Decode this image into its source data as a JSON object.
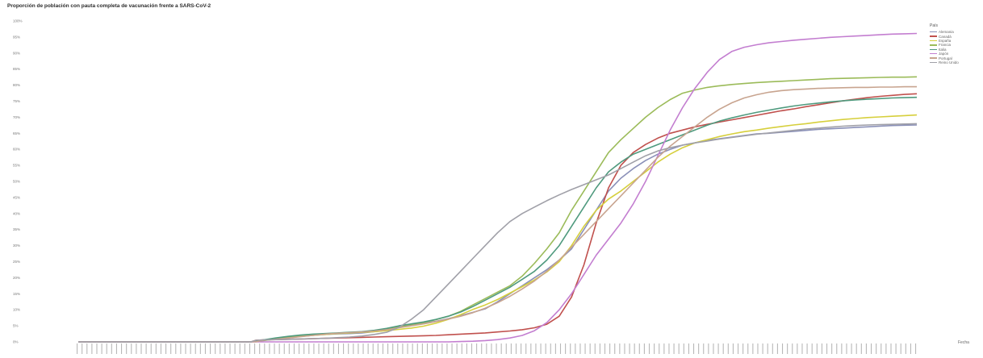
{
  "chart_data": {
    "type": "line",
    "title": "Proporción de población con pauta completa de vacunación frente a SARS-CoV-2",
    "xlabel": "Fecha",
    "ylabel": "",
    "legend_title": "País",
    "legend_position": "top-right",
    "ylim": [
      0,
      100
    ],
    "yticks": [
      "0%",
      "5%",
      "10%",
      "15%",
      "20%",
      "25%",
      "30%",
      "35%",
      "40%",
      "45%",
      "50%",
      "55%",
      "60%",
      "65%",
      "70%",
      "75%",
      "80%",
      "85%",
      "90%",
      "95%",
      "100%"
    ],
    "x_range": [
      "2021-01",
      "2021-12"
    ],
    "grid": false,
    "series": [
      {
        "name": "Alemania",
        "color": "#8a90b8",
        "x": [
          0,
          5,
          10,
          15,
          20,
          25,
          30,
          35,
          40,
          45,
          50,
          55,
          60,
          65,
          70,
          72,
          75,
          80,
          85,
          90,
          95,
          100,
          105,
          110,
          115,
          120,
          125,
          130,
          135,
          140,
          145,
          150,
          155,
          160,
          165,
          170,
          175,
          180,
          185,
          190,
          195,
          200,
          205,
          210,
          215,
          220,
          225,
          230,
          235,
          240,
          245,
          250,
          255,
          260,
          265,
          270,
          275,
          280,
          285,
          290,
          295,
          300,
          305,
          310,
          315,
          320,
          325,
          330,
          335,
          340
        ],
        "y": [
          0,
          0,
          0,
          0,
          0,
          0,
          0,
          0,
          0,
          0,
          0,
          0,
          0,
          0,
          0,
          0.3,
          0.5,
          1.0,
          1.2,
          1.7,
          2.0,
          2.3,
          2.5,
          2.6,
          2.8,
          3.2,
          3.6,
          4.6,
          5.2,
          5.8,
          6.4,
          7.2,
          8.2,
          9.2,
          10.3,
          12.5,
          15.0,
          17.5,
          20.0,
          22.5,
          25.5,
          29,
          35,
          41,
          47,
          51,
          54,
          56.5,
          58.5,
          60,
          61.3,
          62,
          62.8,
          63.3,
          63.8,
          64.3,
          64.8,
          65,
          65.3,
          65.6,
          65.9,
          66.2,
          66.4,
          66.6,
          66.8,
          67,
          67.2,
          67.4,
          67.5,
          67.6
        ]
      },
      {
        "name": "Canadá",
        "color": "#c0504d",
        "x": [
          0,
          5,
          10,
          15,
          20,
          25,
          30,
          35,
          40,
          45,
          50,
          55,
          60,
          65,
          70,
          72,
          75,
          80,
          85,
          90,
          95,
          100,
          105,
          110,
          115,
          120,
          125,
          130,
          135,
          140,
          145,
          150,
          155,
          160,
          165,
          170,
          175,
          180,
          185,
          190,
          195,
          200,
          205,
          210,
          215,
          220,
          225,
          230,
          235,
          240,
          245,
          250,
          255,
          260,
          265,
          270,
          275,
          280,
          285,
          290,
          295,
          300,
          305,
          310,
          315,
          320,
          325,
          330,
          335,
          340
        ],
        "y": [
          0,
          0,
          0,
          0,
          0,
          0,
          0,
          0,
          0,
          0,
          0,
          0,
          0,
          0,
          0,
          0.5,
          0.6,
          0.7,
          0.8,
          0.9,
          1.0,
          1.1,
          1.2,
          1.3,
          1.4,
          1.5,
          1.6,
          1.7,
          1.8,
          1.9,
          2.0,
          2.2,
          2.4,
          2.6,
          2.8,
          3.1,
          3.4,
          3.8,
          4.4,
          5.5,
          8,
          14,
          24,
          37,
          48,
          55,
          59,
          61.5,
          63.5,
          65,
          66,
          67,
          67.8,
          68.5,
          69.2,
          69.9,
          70.6,
          71.3,
          72,
          72.6,
          73.3,
          73.9,
          74.5,
          75.1,
          75.6,
          76.1,
          76.5,
          76.8,
          77.1,
          77.3
        ]
      },
      {
        "name": "España",
        "color": "#d6cf3c",
        "x": [
          0,
          5,
          10,
          15,
          20,
          25,
          30,
          35,
          40,
          45,
          50,
          55,
          60,
          65,
          70,
          72,
          75,
          80,
          85,
          90,
          95,
          100,
          105,
          110,
          115,
          120,
          125,
          130,
          135,
          140,
          145,
          150,
          155,
          160,
          165,
          170,
          175,
          180,
          185,
          190,
          195,
          200,
          205,
          210,
          215,
          220,
          225,
          230,
          235,
          240,
          245,
          250,
          255,
          260,
          265,
          270,
          275,
          280,
          285,
          290,
          295,
          300,
          305,
          310,
          315,
          320,
          325,
          330,
          335,
          340
        ],
        "y": [
          0,
          0,
          0,
          0,
          0,
          0,
          0,
          0,
          0,
          0,
          0,
          0,
          0,
          0,
          0,
          0.2,
          0.5,
          0.9,
          1.3,
          1.7,
          2.0,
          2.3,
          2.6,
          2.8,
          3.0,
          3.2,
          3.5,
          3.9,
          4.3,
          4.9,
          5.8,
          7.0,
          8.5,
          10.1,
          11.5,
          13.2,
          15.2,
          17.2,
          19.3,
          21.8,
          25,
          30,
          36,
          41,
          44.5,
          47,
          50,
          53,
          56,
          58.5,
          60.5,
          62,
          63,
          64,
          64.8,
          65.5,
          66,
          66.6,
          67.1,
          67.6,
          68,
          68.5,
          68.9,
          69.3,
          69.6,
          69.9,
          70.1,
          70.3,
          70.5,
          70.7
        ]
      },
      {
        "name": "Francia",
        "color": "#9bbb59",
        "x": [
          0,
          5,
          10,
          15,
          20,
          25,
          30,
          35,
          40,
          45,
          50,
          55,
          60,
          65,
          70,
          72,
          75,
          80,
          85,
          90,
          95,
          100,
          105,
          110,
          115,
          120,
          125,
          130,
          135,
          140,
          145,
          150,
          155,
          160,
          165,
          170,
          175,
          180,
          185,
          190,
          195,
          200,
          205,
          210,
          215,
          220,
          225,
          230,
          235,
          240,
          245,
          250,
          255,
          260,
          265,
          270,
          275,
          280,
          285,
          290,
          295,
          300,
          305,
          310,
          315,
          320,
          325,
          330,
          335,
          340
        ],
        "y": [
          0,
          0,
          0,
          0,
          0,
          0,
          0,
          0,
          0,
          0,
          0,
          0,
          0,
          0,
          0,
          0.2,
          0.4,
          0.9,
          1.5,
          1.9,
          2.2,
          2.5,
          2.7,
          2.9,
          3.1,
          3.5,
          4.0,
          4.8,
          5.4,
          6.0,
          6.9,
          8.0,
          9.5,
          11.5,
          13.5,
          15.5,
          17.5,
          20.5,
          24.5,
          29,
          34,
          41,
          47,
          53,
          59,
          63,
          66.5,
          70,
          73,
          75.5,
          77.5,
          78.5,
          79.3,
          79.8,
          80.2,
          80.5,
          80.8,
          81,
          81.2,
          81.4,
          81.6,
          81.8,
          82,
          82.1,
          82.2,
          82.3,
          82.4,
          82.5,
          82.5,
          82.6
        ]
      },
      {
        "name": "Italia",
        "color": "#4f9a7e",
        "x": [
          0,
          5,
          10,
          15,
          20,
          25,
          30,
          35,
          40,
          45,
          50,
          55,
          60,
          65,
          70,
          72,
          75,
          80,
          85,
          90,
          95,
          100,
          105,
          110,
          115,
          120,
          125,
          130,
          135,
          140,
          145,
          150,
          155,
          160,
          165,
          170,
          175,
          180,
          185,
          190,
          195,
          200,
          205,
          210,
          215,
          220,
          225,
          230,
          235,
          240,
          245,
          250,
          255,
          260,
          265,
          270,
          275,
          280,
          285,
          290,
          295,
          300,
          305,
          310,
          315,
          320,
          325,
          330,
          335,
          340
        ],
        "y": [
          0,
          0,
          0,
          0,
          0,
          0,
          0,
          0,
          0,
          0,
          0,
          0,
          0,
          0,
          0,
          0.3,
          0.6,
          1.2,
          1.7,
          2.1,
          2.4,
          2.6,
          2.8,
          3.0,
          3.2,
          3.6,
          4.2,
          5.0,
          5.6,
          6.2,
          7.0,
          8.0,
          9.3,
          11.0,
          13.0,
          15.0,
          17.0,
          19.5,
          22,
          25.5,
          30,
          36,
          42,
          48,
          53,
          56,
          58.5,
          60,
          61.5,
          63,
          64.5,
          66,
          67.5,
          68.8,
          69.8,
          70.7,
          71.5,
          72.2,
          72.9,
          73.5,
          74,
          74.4,
          74.8,
          75.1,
          75.4,
          75.6,
          75.8,
          76,
          76.1,
          76.2
        ]
      },
      {
        "name": "Japón",
        "color": "#c37ed0",
        "x": [
          0,
          5,
          10,
          15,
          20,
          25,
          30,
          35,
          40,
          45,
          50,
          55,
          60,
          65,
          70,
          72,
          75,
          80,
          85,
          90,
          95,
          100,
          105,
          110,
          115,
          120,
          125,
          130,
          135,
          140,
          145,
          150,
          155,
          160,
          165,
          170,
          175,
          180,
          185,
          190,
          195,
          200,
          205,
          210,
          215,
          220,
          225,
          230,
          235,
          240,
          245,
          250,
          255,
          260,
          265,
          270,
          275,
          280,
          285,
          290,
          295,
          300,
          305,
          310,
          315,
          320,
          325,
          330,
          335,
          340
        ],
        "y": [
          0,
          0,
          0,
          0,
          0,
          0,
          0,
          0,
          0,
          0,
          0,
          0,
          0,
          0,
          0,
          0,
          0,
          0,
          0,
          0,
          0,
          0,
          0,
          0,
          0,
          0,
          0,
          0,
          0,
          0,
          0,
          0,
          0.1,
          0.2,
          0.4,
          0.7,
          1.2,
          2.0,
          3.5,
          6,
          10,
          15,
          21,
          27,
          32,
          37,
          43,
          50,
          58,
          66,
          73,
          79,
          84,
          88,
          90.5,
          91.8,
          92.6,
          93.2,
          93.6,
          94,
          94.3,
          94.6,
          94.9,
          95.1,
          95.3,
          95.5,
          95.7,
          95.9,
          96,
          96.1
        ]
      },
      {
        "name": "Portugal",
        "color": "#c8a48f",
        "x": [
          0,
          5,
          10,
          15,
          20,
          25,
          30,
          35,
          40,
          45,
          50,
          55,
          60,
          65,
          70,
          72,
          75,
          80,
          85,
          90,
          95,
          100,
          105,
          110,
          115,
          120,
          125,
          130,
          135,
          140,
          145,
          150,
          155,
          160,
          165,
          170,
          175,
          180,
          185,
          190,
          195,
          200,
          205,
          210,
          215,
          220,
          225,
          230,
          235,
          240,
          245,
          250,
          255,
          260,
          265,
          270,
          275,
          280,
          285,
          290,
          295,
          300,
          305,
          310,
          315,
          320,
          325,
          330,
          335,
          340
        ],
        "y": [
          0,
          0,
          0,
          0,
          0,
          0,
          0,
          0,
          0,
          0,
          0,
          0,
          0,
          0,
          0,
          0,
          0.5,
          0.8,
          1.2,
          1.6,
          2.0,
          2.4,
          2.7,
          2.9,
          3.1,
          3.4,
          3.8,
          4.4,
          5.0,
          5.6,
          6.3,
          7.1,
          8.0,
          9.1,
          10.5,
          12.2,
          14.2,
          16.5,
          19,
          22,
          25.5,
          29.5,
          33.5,
          37.5,
          41.5,
          45.5,
          49.5,
          53.5,
          57.5,
          61,
          64,
          67,
          70,
          72.5,
          74.5,
          76,
          77,
          77.8,
          78.3,
          78.6,
          78.8,
          79,
          79.1,
          79.2,
          79.3,
          79.3,
          79.4,
          79.4,
          79.5,
          79.5
        ]
      },
      {
        "name": "Reino Unido",
        "color": "#a0a0a8",
        "x": [
          0,
          5,
          10,
          15,
          20,
          25,
          30,
          35,
          40,
          45,
          50,
          55,
          60,
          65,
          70,
          72,
          75,
          80,
          85,
          90,
          95,
          100,
          105,
          110,
          115,
          120,
          125,
          130,
          135,
          140,
          145,
          150,
          155,
          160,
          165,
          170,
          175,
          180,
          185,
          190,
          195,
          200,
          205,
          210,
          215,
          220,
          225,
          230,
          235,
          240,
          245,
          250,
          255,
          260,
          265,
          270,
          275,
          280,
          285,
          290,
          295,
          300,
          305,
          310,
          315,
          320,
          325,
          330,
          335,
          340
        ],
        "y": [
          0,
          0,
          0,
          0,
          0,
          0,
          0,
          0,
          0,
          0,
          0,
          0,
          0,
          0,
          0,
          0.5,
          0.6,
          0.7,
          0.8,
          0.9,
          1.0,
          1.1,
          1.3,
          1.5,
          1.8,
          2.3,
          3.0,
          4.5,
          7,
          10,
          14,
          18,
          22,
          26,
          30,
          34,
          37.5,
          40,
          42,
          44,
          45.8,
          47.5,
          49,
          50.5,
          52,
          54,
          56,
          58,
          59.5,
          60.5,
          61.3,
          62,
          62.6,
          63.2,
          63.7,
          64.2,
          64.7,
          65.1,
          65.5,
          65.9,
          66.3,
          66.6,
          66.9,
          67.2,
          67.4,
          67.6,
          67.7,
          67.8,
          67.9,
          68
        ]
      }
    ]
  }
}
